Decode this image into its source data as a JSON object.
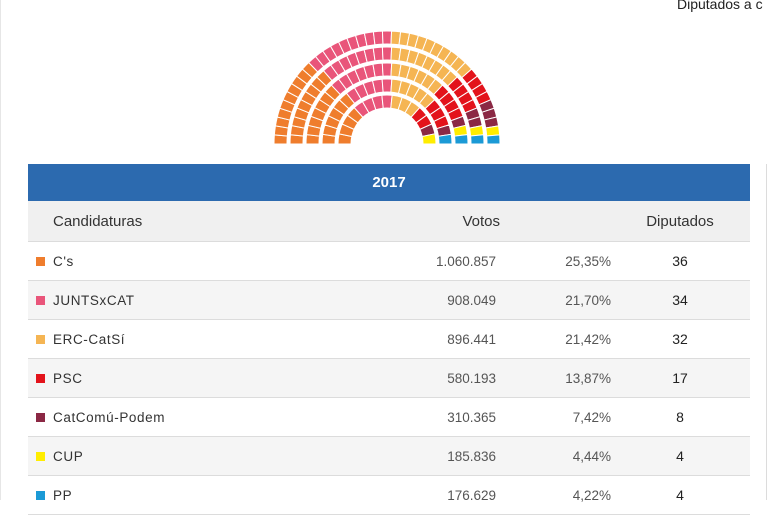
{
  "header": {
    "caption": "Diputados a c"
  },
  "table": {
    "year": "2017",
    "columns": {
      "candidates": "Candidaturas",
      "votes": "Votos",
      "seats": "Diputados"
    },
    "rows": [
      {
        "party": "C's",
        "color": "#ef7d2d",
        "votes": "1.060.857",
        "percent": "25,35%",
        "seats": "36"
      },
      {
        "party": "JUNTSxCAT",
        "color": "#e9557a",
        "votes": "908.049",
        "percent": "21,70%",
        "seats": "34"
      },
      {
        "party": "ERC-CatSí",
        "color": "#f5b553",
        "votes": "896.441",
        "percent": "21,42%",
        "seats": "32"
      },
      {
        "party": "PSC",
        "color": "#e3131b",
        "votes": "580.193",
        "percent": "13,87%",
        "seats": "17"
      },
      {
        "party": "CatComú-Podem",
        "color": "#8b2844",
        "votes": "310.365",
        "percent": "7,42%",
        "seats": "8"
      },
      {
        "party": "CUP",
        "color": "#ffed00",
        "votes": "185.836",
        "percent": "4,44%",
        "seats": "4"
      },
      {
        "party": "PP",
        "color": "#1b9ad6",
        "votes": "176.629",
        "percent": "4,22%",
        "seats": "4"
      }
    ]
  }
}
